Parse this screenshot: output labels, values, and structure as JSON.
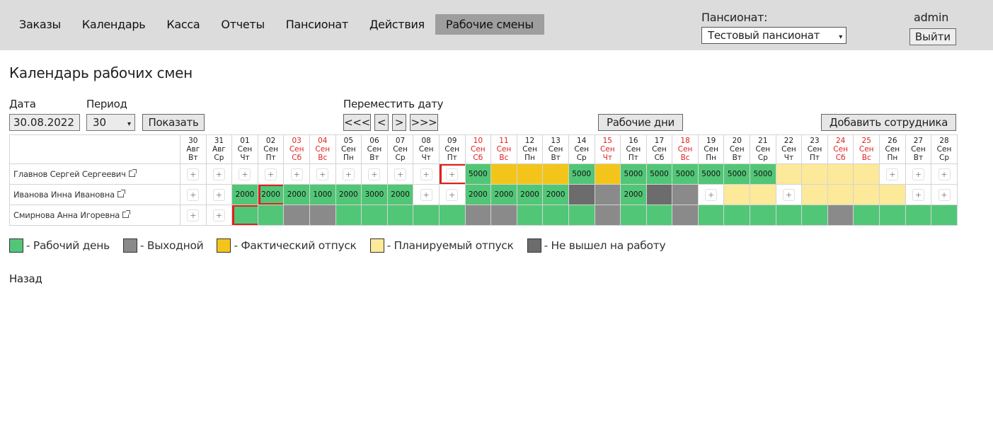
{
  "nav": {
    "items": [
      {
        "label": "Заказы",
        "active": false
      },
      {
        "label": "Календарь",
        "active": false
      },
      {
        "label": "Касса",
        "active": false
      },
      {
        "label": "Отчеты",
        "active": false
      },
      {
        "label": "Пансионат",
        "active": false
      },
      {
        "label": "Действия",
        "active": false
      },
      {
        "label": "Рабочие смены",
        "active": true
      }
    ]
  },
  "header": {
    "pension_label": "Пансионат:",
    "pension_selected": "Тестовый пансионат",
    "user": "admin",
    "logout_label": "Выйти"
  },
  "page": {
    "title": "Календарь рабочих смен",
    "date_label": "Дата",
    "date_value": "30.08.2022",
    "period_label": "Период",
    "period_value": "30",
    "show_label": "Показать",
    "move_label": "Переместить дату",
    "move_buttons": [
      "<<<",
      "<",
      ">",
      ">>>"
    ],
    "workdays_label": "Рабочие дни",
    "add_employee_label": "Добавить сотрудника",
    "back_label": "Назад"
  },
  "days": [
    {
      "num": "30",
      "mon": "Авг",
      "dow": "Вт",
      "holiday": false
    },
    {
      "num": "31",
      "mon": "Авг",
      "dow": "Ср",
      "holiday": false
    },
    {
      "num": "01",
      "mon": "Сен",
      "dow": "Чт",
      "holiday": false
    },
    {
      "num": "02",
      "mon": "Сен",
      "dow": "Пт",
      "holiday": false
    },
    {
      "num": "03",
      "mon": "Сен",
      "dow": "Сб",
      "holiday": true
    },
    {
      "num": "04",
      "mon": "Сен",
      "dow": "Вс",
      "holiday": true
    },
    {
      "num": "05",
      "mon": "Сен",
      "dow": "Пн",
      "holiday": false
    },
    {
      "num": "06",
      "mon": "Сен",
      "dow": "Вт",
      "holiday": false
    },
    {
      "num": "07",
      "mon": "Сен",
      "dow": "Ср",
      "holiday": false
    },
    {
      "num": "08",
      "mon": "Сен",
      "dow": "Чт",
      "holiday": false
    },
    {
      "num": "09",
      "mon": "Сен",
      "dow": "Пт",
      "holiday": false
    },
    {
      "num": "10",
      "mon": "Сен",
      "dow": "Сб",
      "holiday": true
    },
    {
      "num": "11",
      "mon": "Сен",
      "dow": "Вс",
      "holiday": true
    },
    {
      "num": "12",
      "mon": "Сен",
      "dow": "Пн",
      "holiday": false
    },
    {
      "num": "13",
      "mon": "Сен",
      "dow": "Вт",
      "holiday": false
    },
    {
      "num": "14",
      "mon": "Сен",
      "dow": "Ср",
      "holiday": false
    },
    {
      "num": "15",
      "mon": "Сен",
      "dow": "Чт",
      "holiday": true
    },
    {
      "num": "16",
      "mon": "Сен",
      "dow": "Пт",
      "holiday": false
    },
    {
      "num": "17",
      "mon": "Сен",
      "dow": "Сб",
      "holiday": false
    },
    {
      "num": "18",
      "mon": "Сен",
      "dow": "Вс",
      "holiday": true
    },
    {
      "num": "19",
      "mon": "Сен",
      "dow": "Пн",
      "holiday": false
    },
    {
      "num": "20",
      "mon": "Сен",
      "dow": "Вт",
      "holiday": false
    },
    {
      "num": "21",
      "mon": "Сен",
      "dow": "Ср",
      "holiday": false
    },
    {
      "num": "22",
      "mon": "Сен",
      "dow": "Чт",
      "holiday": false
    },
    {
      "num": "23",
      "mon": "Сен",
      "dow": "Пт",
      "holiday": false
    },
    {
      "num": "24",
      "mon": "Сен",
      "dow": "Сб",
      "holiday": true
    },
    {
      "num": "25",
      "mon": "Сен",
      "dow": "Вс",
      "holiday": true
    },
    {
      "num": "26",
      "mon": "Сен",
      "dow": "Пн",
      "holiday": false
    },
    {
      "num": "27",
      "mon": "Сен",
      "dow": "Вт",
      "holiday": false
    },
    {
      "num": "28",
      "mon": "Сен",
      "dow": "Ср",
      "holiday": false
    }
  ],
  "employees": [
    {
      "name": "Главнов Сергей Сергеевич",
      "cells": [
        {
          "t": "empty"
        },
        {
          "t": "empty"
        },
        {
          "t": "empty"
        },
        {
          "t": "empty"
        },
        {
          "t": "empty"
        },
        {
          "t": "empty"
        },
        {
          "t": "empty"
        },
        {
          "t": "empty"
        },
        {
          "t": "empty"
        },
        {
          "t": "empty"
        },
        {
          "t": "empty",
          "today": true
        },
        {
          "t": "work",
          "v": "5000"
        },
        {
          "t": "fact"
        },
        {
          "t": "fact"
        },
        {
          "t": "fact"
        },
        {
          "t": "work",
          "v": "5000"
        },
        {
          "t": "fact"
        },
        {
          "t": "work",
          "v": "5000"
        },
        {
          "t": "work",
          "v": "5000"
        },
        {
          "t": "work",
          "v": "5000"
        },
        {
          "t": "work",
          "v": "5000"
        },
        {
          "t": "work",
          "v": "5000"
        },
        {
          "t": "work",
          "v": "5000"
        },
        {
          "t": "plan"
        },
        {
          "t": "plan"
        },
        {
          "t": "plan"
        },
        {
          "t": "plan"
        },
        {
          "t": "empty"
        },
        {
          "t": "empty"
        },
        {
          "t": "empty"
        }
      ]
    },
    {
      "name": "Иванова Инна Ивановна",
      "cells": [
        {
          "t": "empty"
        },
        {
          "t": "empty"
        },
        {
          "t": "work",
          "v": "2000"
        },
        {
          "t": "work",
          "v": "2000",
          "today": true
        },
        {
          "t": "work",
          "v": "2000"
        },
        {
          "t": "work",
          "v": "1000"
        },
        {
          "t": "work",
          "v": "2000"
        },
        {
          "t": "work",
          "v": "3000"
        },
        {
          "t": "work",
          "v": "2000"
        },
        {
          "t": "empty"
        },
        {
          "t": "empty"
        },
        {
          "t": "work",
          "v": "2000"
        },
        {
          "t": "work",
          "v": "2000"
        },
        {
          "t": "work",
          "v": "2000"
        },
        {
          "t": "work",
          "v": "2000"
        },
        {
          "t": "miss"
        },
        {
          "t": "off"
        },
        {
          "t": "work",
          "v": "2000"
        },
        {
          "t": "miss"
        },
        {
          "t": "off"
        },
        {
          "t": "empty"
        },
        {
          "t": "plan"
        },
        {
          "t": "plan"
        },
        {
          "t": "empty"
        },
        {
          "t": "plan"
        },
        {
          "t": "plan"
        },
        {
          "t": "plan"
        },
        {
          "t": "plan"
        },
        {
          "t": "empty"
        },
        {
          "t": "empty"
        }
      ]
    },
    {
      "name": "Смирнова Анна Игоревна",
      "cells": [
        {
          "t": "empty"
        },
        {
          "t": "empty"
        },
        {
          "t": "work",
          "today": true
        },
        {
          "t": "work"
        },
        {
          "t": "off"
        },
        {
          "t": "off"
        },
        {
          "t": "work"
        },
        {
          "t": "work"
        },
        {
          "t": "work"
        },
        {
          "t": "work"
        },
        {
          "t": "work"
        },
        {
          "t": "off"
        },
        {
          "t": "off"
        },
        {
          "t": "work"
        },
        {
          "t": "work"
        },
        {
          "t": "work"
        },
        {
          "t": "off"
        },
        {
          "t": "work"
        },
        {
          "t": "work"
        },
        {
          "t": "off"
        },
        {
          "t": "work"
        },
        {
          "t": "work"
        },
        {
          "t": "work"
        },
        {
          "t": "work"
        },
        {
          "t": "work"
        },
        {
          "t": "off"
        },
        {
          "t": "work"
        },
        {
          "t": "work"
        },
        {
          "t": "work"
        },
        {
          "t": "work"
        }
      ]
    }
  ],
  "legend": [
    {
      "label": "- Рабочий день",
      "color": "#52c677"
    },
    {
      "label": "- Выходной",
      "color": "#8a8a8a"
    },
    {
      "label": "- Фактический отпуск",
      "color": "#f3c51a"
    },
    {
      "label": "- Планируемый отпуск",
      "color": "#fce999"
    },
    {
      "label": "- Не вышел на работу",
      "color": "#6c6c6c"
    }
  ],
  "icons": {
    "plus": "+",
    "caret": "▾"
  }
}
